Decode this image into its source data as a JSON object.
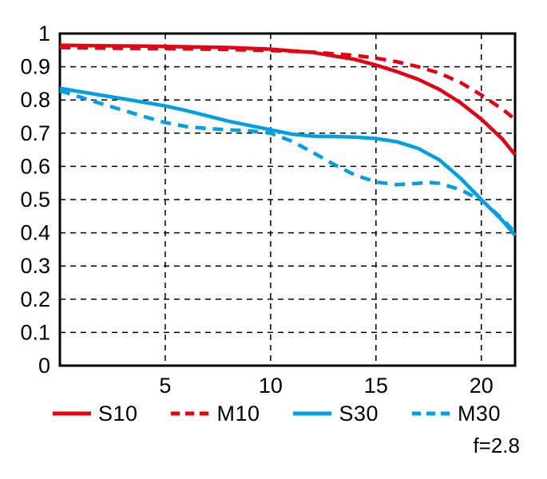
{
  "chart_data": {
    "type": "line",
    "title": "",
    "xlabel": "",
    "ylabel": "",
    "xlim": [
      0,
      21.6
    ],
    "ylim": [
      0,
      1
    ],
    "x_ticks": [
      "5",
      "10",
      "15",
      "20"
    ],
    "y_ticks": [
      "0",
      "0.1",
      "0.2",
      "0.3",
      "0.4",
      "0.5",
      "0.6",
      "0.7",
      "0.8",
      "0.9",
      "1"
    ],
    "grid": "dashed",
    "legend_position": "bottom",
    "annotation": "f=2.8",
    "colors": {
      "frame": "#000000",
      "grid": "#000000",
      "red": "#e60012",
      "cyan": "#00a0e2"
    },
    "series": [
      {
        "name": "S10",
        "color": "#e60012",
        "style": "solid",
        "points": [
          [
            0,
            0.965
          ],
          [
            2,
            0.963
          ],
          [
            4,
            0.962
          ],
          [
            6,
            0.96
          ],
          [
            8,
            0.958
          ],
          [
            10,
            0.953
          ],
          [
            12,
            0.943
          ],
          [
            14,
            0.922
          ],
          [
            15,
            0.905
          ],
          [
            16,
            0.885
          ],
          [
            17,
            0.862
          ],
          [
            18,
            0.832
          ],
          [
            19,
            0.792
          ],
          [
            20,
            0.742
          ],
          [
            21,
            0.682
          ],
          [
            21.6,
            0.635
          ]
        ]
      },
      {
        "name": "M10",
        "color": "#e60012",
        "style": "dashed",
        "points": [
          [
            0,
            0.958
          ],
          [
            2,
            0.956
          ],
          [
            4,
            0.955
          ],
          [
            6,
            0.954
          ],
          [
            8,
            0.952
          ],
          [
            10,
            0.949
          ],
          [
            12,
            0.944
          ],
          [
            14,
            0.934
          ],
          [
            15,
            0.926
          ],
          [
            16,
            0.915
          ],
          [
            17,
            0.9
          ],
          [
            18,
            0.881
          ],
          [
            19,
            0.853
          ],
          [
            20,
            0.815
          ],
          [
            21,
            0.772
          ],
          [
            21.6,
            0.742
          ]
        ]
      },
      {
        "name": "S30",
        "color": "#00a0e2",
        "style": "solid",
        "points": [
          [
            0,
            0.835
          ],
          [
            2,
            0.814
          ],
          [
            4,
            0.793
          ],
          [
            5,
            0.782
          ],
          [
            6,
            0.768
          ],
          [
            8,
            0.736
          ],
          [
            10,
            0.71
          ],
          [
            11,
            0.697
          ],
          [
            12,
            0.691
          ],
          [
            13,
            0.69
          ],
          [
            14,
            0.688
          ],
          [
            15,
            0.684
          ],
          [
            16,
            0.674
          ],
          [
            17,
            0.654
          ],
          [
            18,
            0.62
          ],
          [
            19,
            0.565
          ],
          [
            20,
            0.5
          ],
          [
            21,
            0.437
          ],
          [
            21.6,
            0.392
          ]
        ]
      },
      {
        "name": "M30",
        "color": "#00a0e2",
        "style": "dashed",
        "points": [
          [
            0,
            0.828
          ],
          [
            2,
            0.788
          ],
          [
            4,
            0.75
          ],
          [
            5,
            0.732
          ],
          [
            6,
            0.72
          ],
          [
            7,
            0.714
          ],
          [
            8,
            0.71
          ],
          [
            9,
            0.707
          ],
          [
            10,
            0.7
          ],
          [
            11,
            0.676
          ],
          [
            12,
            0.642
          ],
          [
            13,
            0.606
          ],
          [
            14,
            0.574
          ],
          [
            15,
            0.553
          ],
          [
            16,
            0.545
          ],
          [
            17,
            0.549
          ],
          [
            17.5,
            0.552
          ],
          [
            18,
            0.549
          ],
          [
            19,
            0.53
          ],
          [
            20,
            0.498
          ],
          [
            21,
            0.442
          ],
          [
            21.6,
            0.4
          ]
        ]
      }
    ]
  }
}
